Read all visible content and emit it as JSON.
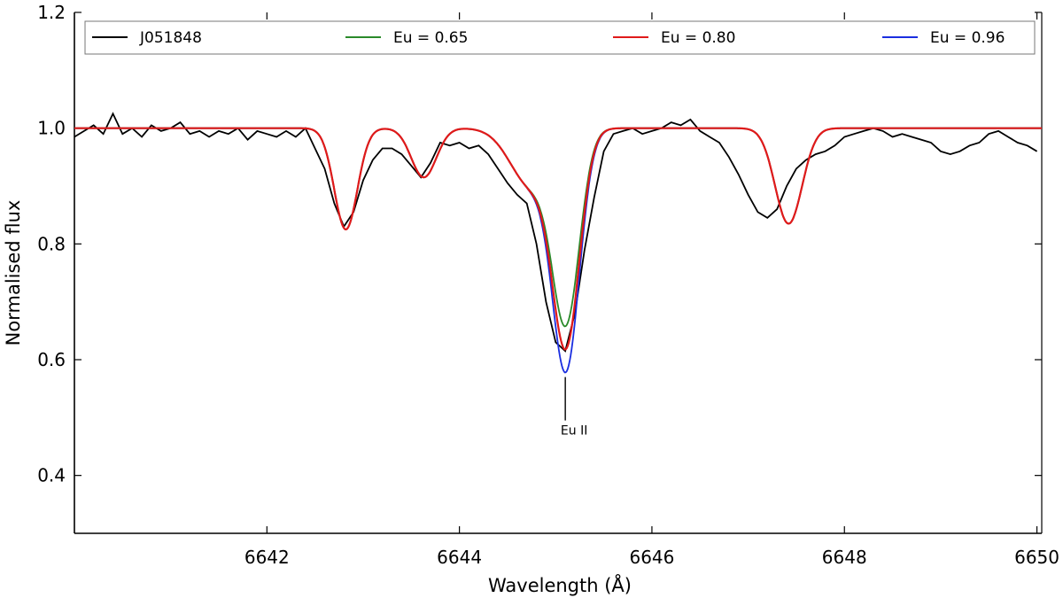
{
  "chart_data": {
    "type": "line",
    "title": "",
    "xlabel": "Wavelength (Å)",
    "ylabel": "Normalised flux",
    "xlim": [
      6640.0,
      6650.05
    ],
    "ylim": [
      0.3,
      1.2
    ],
    "xticks": [
      6642,
      6644,
      6646,
      6648,
      6650
    ],
    "xtick_labels": [
      "6642",
      "6644",
      "6646",
      "6648",
      "6650"
    ],
    "yticks": [
      0.4,
      0.6,
      0.8,
      1.0,
      1.2
    ],
    "ytick_labels": [
      "0.4",
      "0.6",
      "0.8",
      "1.0",
      "1.2"
    ],
    "grid": false,
    "legend_position": "top",
    "model": {
      "continuum": 1.0,
      "lines": [
        {
          "center": 6642.82,
          "depth": 0.175,
          "sigma": 0.12
        },
        {
          "center": 6643.63,
          "depth": 0.085,
          "sigma": 0.13
        },
        {
          "center": 6645.11,
          "depth": "eu_dependent",
          "sigma": 0.14
        },
        {
          "center": 6644.75,
          "depth": 0.1,
          "sigma": 0.22
        },
        {
          "center": 6647.42,
          "depth": 0.165,
          "sigma": 0.14
        }
      ]
    },
    "series": [
      {
        "name": "J051848",
        "color": "#000000",
        "x": [
          6640.0,
          6640.1,
          6640.2,
          6640.3,
          6640.4,
          6640.5,
          6640.6,
          6640.7,
          6640.8,
          6640.9,
          6641.0,
          6641.1,
          6641.2,
          6641.3,
          6641.4,
          6641.5,
          6641.6,
          6641.7,
          6641.8,
          6641.9,
          6642.0,
          6642.1,
          6642.2,
          6642.3,
          6642.4,
          6642.5,
          6642.6,
          6642.7,
          6642.8,
          6642.9,
          6643.0,
          6643.1,
          6643.2,
          6643.3,
          6643.4,
          6643.5,
          6643.6,
          6643.7,
          6643.8,
          6643.9,
          6644.0,
          6644.1,
          6644.2,
          6644.3,
          6644.4,
          6644.5,
          6644.6,
          6644.7,
          6644.8,
          6644.9,
          6645.0,
          6645.1,
          6645.2,
          6645.3,
          6645.4,
          6645.5,
          6645.6,
          6645.7,
          6645.8,
          6645.9,
          6646.0,
          6646.1,
          6646.2,
          6646.3,
          6646.4,
          6646.5,
          6646.6,
          6646.7,
          6646.8,
          6646.9,
          6647.0,
          6647.1,
          6647.2,
          6647.3,
          6647.4,
          6647.5,
          6647.6,
          6647.7,
          6647.8,
          6647.9,
          6648.0,
          6648.1,
          6648.2,
          6648.3,
          6648.4,
          6648.5,
          6648.6,
          6648.7,
          6648.8,
          6648.9,
          6649.0,
          6649.1,
          6649.2,
          6649.3,
          6649.4,
          6649.5,
          6649.6,
          6649.7,
          6649.8,
          6649.9,
          6650.0
        ],
        "y": [
          0.985,
          0.995,
          1.005,
          0.99,
          1.025,
          0.99,
          1.0,
          0.985,
          1.005,
          0.995,
          1.0,
          1.01,
          0.99,
          0.995,
          0.985,
          0.995,
          0.99,
          1.0,
          0.98,
          0.995,
          0.99,
          0.985,
          0.995,
          0.985,
          1.0,
          0.965,
          0.93,
          0.87,
          0.83,
          0.855,
          0.91,
          0.945,
          0.965,
          0.965,
          0.955,
          0.935,
          0.915,
          0.94,
          0.975,
          0.97,
          0.975,
          0.965,
          0.97,
          0.955,
          0.93,
          0.905,
          0.885,
          0.87,
          0.8,
          0.7,
          0.63,
          0.615,
          0.68,
          0.79,
          0.88,
          0.96,
          0.99,
          0.995,
          1.0,
          0.99,
          0.995,
          1.0,
          1.01,
          1.005,
          1.015,
          0.995,
          0.985,
          0.975,
          0.95,
          0.92,
          0.885,
          0.855,
          0.845,
          0.86,
          0.9,
          0.93,
          0.945,
          0.955,
          0.96,
          0.97,
          0.985,
          0.99,
          0.995,
          1.0,
          0.995,
          0.985,
          0.99,
          0.985,
          0.98,
          0.975,
          0.96,
          0.955,
          0.96,
          0.97,
          0.975,
          0.99,
          0.995,
          0.985,
          0.975,
          0.97,
          0.96
        ]
      },
      {
        "name": "Eu = 0.65",
        "color": "#2a8a2a",
        "eu_depth": 0.315
      },
      {
        "name": "Eu = 0.80",
        "color": "#e01a1a",
        "eu_depth": 0.355
      },
      {
        "name": "Eu = 0.96",
        "color": "#1a2ee0",
        "eu_depth": 0.395
      }
    ],
    "annotations": [
      {
        "text": "Eu II",
        "x": 6645.1,
        "y_top": 0.57,
        "y_bottom": 0.495
      }
    ]
  }
}
